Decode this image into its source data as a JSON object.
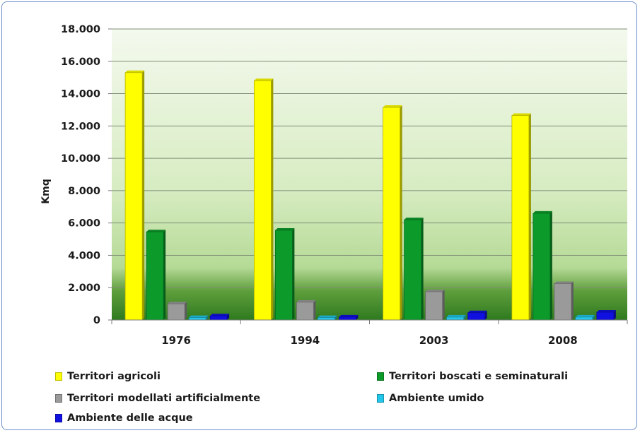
{
  "chart_data": {
    "type": "bar",
    "title": "",
    "xlabel": "",
    "ylabel": "Kmq",
    "ylim": [
      0,
      18000
    ],
    "yticks": [
      0,
      2000,
      4000,
      6000,
      8000,
      10000,
      12000,
      14000,
      16000,
      18000
    ],
    "ytick_labels": [
      "0",
      "2.000",
      "4.000",
      "6.000",
      "8.000",
      "10.000",
      "12.000",
      "14.000",
      "16.000",
      "18.000"
    ],
    "grid": true,
    "legend_position": "bottom",
    "categories": [
      "1976",
      "1994",
      "2003",
      "2008"
    ],
    "series": [
      {
        "name": "Territori agricoli",
        "color": "#ffff00",
        "values": [
          15300,
          14800,
          13150,
          12650
        ]
      },
      {
        "name": "Territori boscati e seminaturali",
        "color": "#0c9b2a",
        "values": [
          5450,
          5550,
          6200,
          6600
        ]
      },
      {
        "name": "Territori modellati artificialmente",
        "color": "#9a9a9a",
        "values": [
          1000,
          1100,
          1750,
          2250
        ]
      },
      {
        "name": "Ambiente umido",
        "color": "#22c6e8",
        "values": [
          150,
          150,
          180,
          180
        ]
      },
      {
        "name": "Ambiente delle acque",
        "color": "#1010e0",
        "values": [
          250,
          180,
          450,
          480
        ]
      }
    ]
  }
}
